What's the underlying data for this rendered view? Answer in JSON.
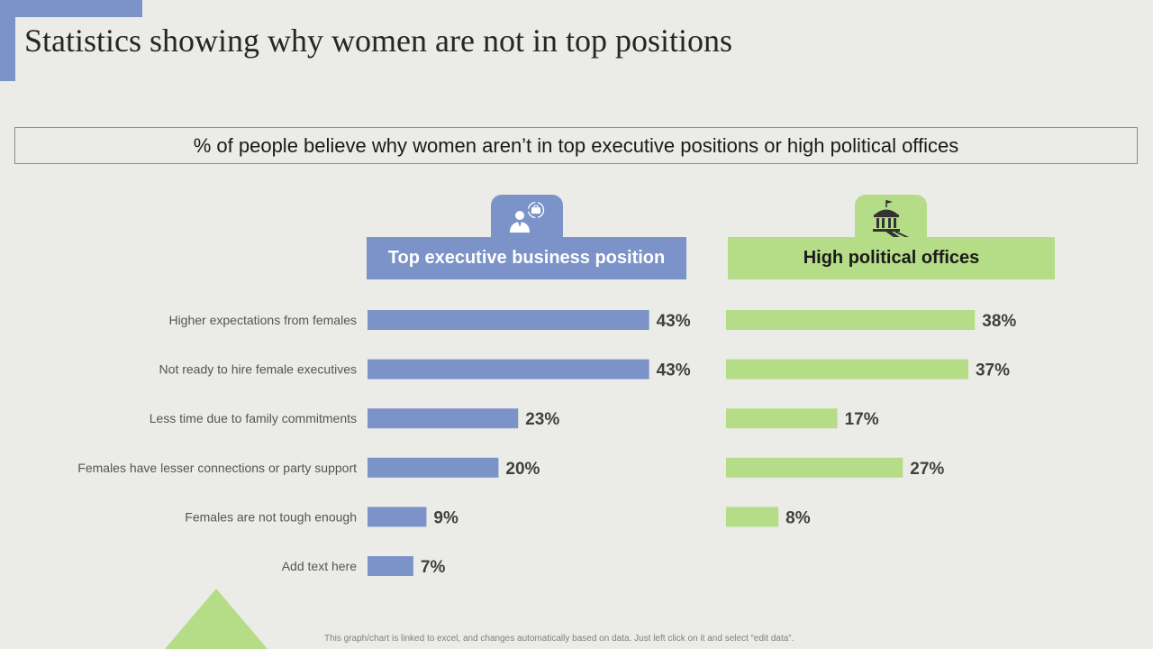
{
  "title": "Statistics showing why women are not in top positions",
  "subtitle": "% of people believe why women aren’t in top executive positions or high political offices",
  "footnote": "This graph/chart is linked to excel, and changes automatically based on data. Just left click on it and select “edit data”.",
  "icons": {
    "executive": "businessperson-briefcase-icon",
    "political": "government-building-gavel-icon"
  },
  "colors": {
    "executive": "#7b93c8",
    "political": "#b5dc86",
    "background": "#ebebe7"
  },
  "chart_data": {
    "type": "bar",
    "orientation": "horizontal",
    "title": "% of people believe why women aren’t in top executive positions or high political offices",
    "categories": [
      "Higher expectations from females",
      "Not ready to hire female executives",
      "Less time due to family commitments",
      "Females have lesser connections or party support",
      "Females are not tough enough",
      "Add text here"
    ],
    "series": [
      {
        "name": "Top executive business position",
        "values": [
          43,
          43,
          23,
          20,
          9,
          7
        ],
        "labels": [
          "43%",
          "43%",
          "23%",
          "20%",
          "9%",
          "7%"
        ]
      },
      {
        "name": "High political offices",
        "values": [
          38,
          37,
          17,
          27,
          8,
          null
        ],
        "labels": [
          "38%",
          "37%",
          "17%",
          "27%",
          "8%",
          null
        ]
      }
    ],
    "unit": "%",
    "xlim": [
      0,
      50
    ]
  }
}
